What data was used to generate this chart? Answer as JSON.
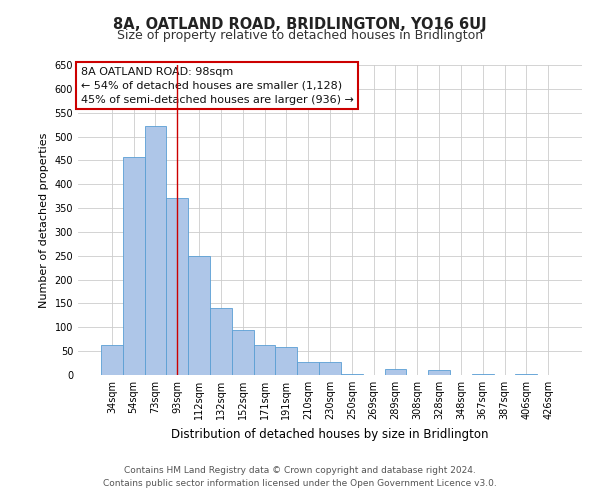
{
  "title": "8A, OATLAND ROAD, BRIDLINGTON, YO16 6UJ",
  "subtitle": "Size of property relative to detached houses in Bridlington",
  "xlabel": "Distribution of detached houses by size in Bridlington",
  "ylabel": "Number of detached properties",
  "bar_labels": [
    "34sqm",
    "54sqm",
    "73sqm",
    "93sqm",
    "112sqm",
    "132sqm",
    "152sqm",
    "171sqm",
    "191sqm",
    "210sqm",
    "230sqm",
    "250sqm",
    "269sqm",
    "289sqm",
    "308sqm",
    "328sqm",
    "348sqm",
    "367sqm",
    "387sqm",
    "406sqm",
    "426sqm"
  ],
  "bar_values": [
    62,
    457,
    523,
    372,
    250,
    141,
    95,
    62,
    58,
    27,
    28,
    3,
    0,
    13,
    0,
    10,
    0,
    3,
    0,
    2,
    0
  ],
  "bar_color": "#aec6e8",
  "bar_edge_color": "#5a9fd4",
  "marker_line_x_label": "93sqm",
  "marker_line_color": "#cc0000",
  "annotation_title": "8A OATLAND ROAD: 98sqm",
  "annotation_line1": "← 54% of detached houses are smaller (1,128)",
  "annotation_line2": "45% of semi-detached houses are larger (936) →",
  "annotation_box_color": "#ffffff",
  "annotation_box_edge": "#cc0000",
  "ylim": [
    0,
    650
  ],
  "yticks": [
    0,
    50,
    100,
    150,
    200,
    250,
    300,
    350,
    400,
    450,
    500,
    550,
    600,
    650
  ],
  "footer_line1": "Contains HM Land Registry data © Crown copyright and database right 2024.",
  "footer_line2": "Contains public sector information licensed under the Open Government Licence v3.0.",
  "bg_color": "#ffffff",
  "grid_color": "#cccccc",
  "title_fontsize": 10.5,
  "subtitle_fontsize": 9,
  "xlabel_fontsize": 8.5,
  "ylabel_fontsize": 8,
  "tick_fontsize": 7,
  "annotation_fontsize": 8,
  "footer_fontsize": 6.5
}
